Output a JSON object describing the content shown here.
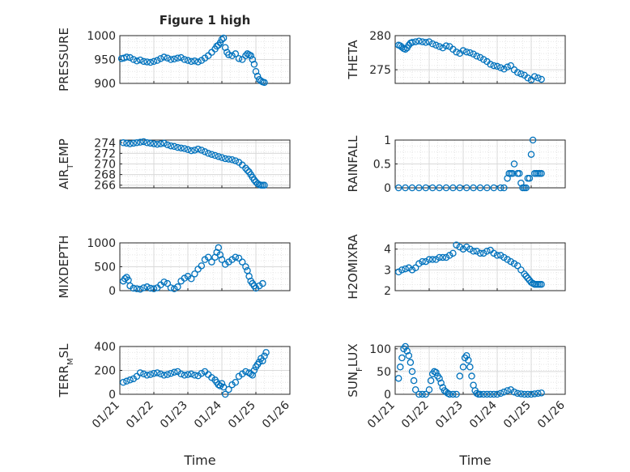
{
  "figure": {
    "title": "Figure 1 high",
    "marker_color": "#0072bd",
    "grid_color": "#d9d9d9",
    "axis_color": "#262626",
    "x_ticks": [
      "01/21",
      "01/22",
      "01/23",
      "01/24",
      "01/25",
      "01/26"
    ],
    "x_label": "Time"
  },
  "chart_data": [
    {
      "type": "scatter",
      "id": "pressure",
      "title": "Figure 1 high",
      "ylabel": "PRESSURE",
      "ylim": [
        900,
        1000
      ],
      "yticks": [
        "900",
        "950",
        "1000"
      ],
      "xlim": [
        0,
        5
      ],
      "grid": true,
      "x": [
        0.05,
        0.12,
        0.2,
        0.3,
        0.4,
        0.5,
        0.6,
        0.7,
        0.8,
        0.9,
        1.0,
        1.1,
        1.2,
        1.3,
        1.4,
        1.5,
        1.6,
        1.7,
        1.8,
        1.9,
        2.0,
        2.1,
        2.2,
        2.3,
        2.4,
        2.5,
        2.6,
        2.7,
        2.8,
        2.85,
        2.9,
        2.95,
        3.0,
        3.05,
        3.1,
        3.15,
        3.2,
        3.3,
        3.4,
        3.5,
        3.6,
        3.7,
        3.75,
        3.8,
        3.85,
        3.9,
        3.95,
        4.0,
        4.05,
        4.1,
        4.15,
        4.2,
        4.25
      ],
      "y": [
        952,
        953,
        955,
        954,
        950,
        947,
        949,
        946,
        945,
        944,
        946,
        948,
        952,
        955,
        953,
        950,
        951,
        953,
        954,
        950,
        948,
        946,
        947,
        945,
        948,
        953,
        958,
        965,
        972,
        978,
        980,
        985,
        992,
        995,
        975,
        965,
        960,
        958,
        962,
        952,
        950,
        958,
        962,
        960,
        958,
        950,
        940,
        925,
        915,
        908,
        905,
        903,
        902
      ]
    },
    {
      "type": "scatter",
      "id": "theta",
      "ylabel": "THETA",
      "ylim": [
        273,
        280
      ],
      "yticks": [
        "275",
        "280"
      ],
      "xlim": [
        0,
        5
      ],
      "grid": true,
      "x": [
        0.1,
        0.15,
        0.2,
        0.25,
        0.3,
        0.35,
        0.4,
        0.45,
        0.5,
        0.6,
        0.7,
        0.8,
        0.9,
        1.0,
        1.1,
        1.2,
        1.3,
        1.4,
        1.5,
        1.6,
        1.7,
        1.8,
        1.9,
        2.0,
        2.1,
        2.2,
        2.3,
        2.4,
        2.5,
        2.6,
        2.7,
        2.8,
        2.9,
        3.0,
        3.1,
        3.2,
        3.3,
        3.4,
        3.5,
        3.6,
        3.7,
        3.8,
        3.9,
        4.0,
        4.1,
        4.2,
        4.3
      ],
      "y": [
        278.6,
        278.5,
        278.3,
        278.1,
        278.0,
        278.2,
        278.6,
        278.9,
        279.0,
        279.1,
        279.2,
        279.1,
        279.0,
        279.1,
        278.8,
        278.6,
        278.4,
        278.2,
        278.5,
        278.4,
        278.0,
        277.6,
        277.4,
        277.8,
        277.6,
        277.5,
        277.3,
        277.0,
        276.8,
        276.5,
        276.2,
        275.8,
        275.6,
        275.5,
        275.3,
        275.1,
        275.4,
        275.6,
        275.0,
        274.6,
        274.4,
        274.2,
        273.8,
        273.5,
        274.0,
        273.8,
        273.6
      ]
    },
    {
      "type": "scatter",
      "id": "air-temp",
      "ylabel": "AIR_TEMP",
      "ylim": [
        265.5,
        274.5
      ],
      "yticks": [
        "266",
        "268",
        "270",
        "272",
        "274"
      ],
      "xlim": [
        0,
        5
      ],
      "grid": true,
      "x": [
        0.1,
        0.2,
        0.3,
        0.4,
        0.5,
        0.6,
        0.7,
        0.8,
        0.9,
        1.0,
        1.1,
        1.2,
        1.3,
        1.4,
        1.5,
        1.6,
        1.7,
        1.8,
        1.9,
        2.0,
        2.1,
        2.2,
        2.3,
        2.4,
        2.5,
        2.6,
        2.7,
        2.8,
        2.9,
        3.0,
        3.1,
        3.2,
        3.3,
        3.4,
        3.5,
        3.6,
        3.7,
        3.75,
        3.8,
        3.85,
        3.9,
        3.95,
        4.0,
        4.05,
        4.1,
        4.15,
        4.2,
        4.25
      ],
      "y": [
        274.0,
        273.9,
        273.8,
        273.9,
        274.0,
        274.1,
        274.2,
        274.0,
        273.9,
        273.8,
        273.7,
        273.8,
        273.9,
        273.6,
        273.4,
        273.3,
        273.1,
        273.0,
        272.9,
        272.7,
        272.5,
        272.6,
        272.8,
        272.6,
        272.3,
        272.0,
        271.8,
        271.6,
        271.4,
        271.2,
        271.0,
        270.9,
        270.8,
        270.6,
        270.3,
        269.8,
        269.2,
        268.8,
        268.5,
        268.0,
        267.5,
        267.0,
        266.6,
        266.3,
        266.1,
        266.0,
        266.0,
        266.0
      ]
    },
    {
      "type": "scatter",
      "id": "rainfall",
      "ylabel": "RAINFALL",
      "ylim": [
        0,
        1
      ],
      "yticks": [
        "0",
        "0.5",
        "1"
      ],
      "xlim": [
        0,
        5
      ],
      "grid": true,
      "x": [
        0.1,
        0.3,
        0.5,
        0.7,
        0.9,
        1.1,
        1.3,
        1.5,
        1.7,
        1.9,
        2.1,
        2.3,
        2.5,
        2.7,
        2.9,
        3.1,
        3.2,
        3.3,
        3.35,
        3.4,
        3.45,
        3.5,
        3.6,
        3.65,
        3.7,
        3.75,
        3.8,
        3.85,
        3.9,
        3.95,
        4.0,
        4.05,
        4.1,
        4.15,
        4.2,
        4.25,
        4.3
      ],
      "y": [
        0,
        0,
        0,
        0,
        0,
        0,
        0,
        0,
        0,
        0,
        0,
        0,
        0,
        0,
        0,
        0,
        0,
        0.2,
        0.3,
        0.3,
        0.3,
        0.5,
        0.3,
        0.3,
        0.1,
        0,
        0,
        0,
        0.2,
        0.2,
        0.7,
        1.0,
        0.3,
        0.3,
        0.3,
        0.3,
        0.3
      ]
    },
    {
      "type": "scatter",
      "id": "mixdepth",
      "ylabel": "MIXDEPTH",
      "ylim": [
        0,
        1000
      ],
      "yticks": [
        "0",
        "500",
        "1000"
      ],
      "xlim": [
        0,
        5
      ],
      "grid": true,
      "x": [
        0.1,
        0.15,
        0.2,
        0.25,
        0.3,
        0.4,
        0.5,
        0.6,
        0.7,
        0.8,
        0.9,
        1.0,
        1.1,
        1.2,
        1.3,
        1.4,
        1.5,
        1.6,
        1.7,
        1.8,
        1.9,
        2.0,
        2.1,
        2.2,
        2.3,
        2.4,
        2.5,
        2.6,
        2.7,
        2.8,
        2.85,
        2.9,
        2.95,
        3.0,
        3.1,
        3.2,
        3.3,
        3.4,
        3.5,
        3.6,
        3.7,
        3.75,
        3.8,
        3.85,
        3.9,
        3.95,
        4.0,
        4.1,
        4.2
      ],
      "y": [
        200,
        250,
        280,
        220,
        100,
        50,
        40,
        30,
        60,
        80,
        50,
        40,
        60,
        120,
        180,
        150,
        60,
        40,
        80,
        200,
        260,
        300,
        250,
        350,
        450,
        520,
        650,
        700,
        600,
        700,
        800,
        900,
        750,
        650,
        550,
        600,
        650,
        700,
        680,
        600,
        500,
        420,
        300,
        200,
        150,
        100,
        50,
        100,
        150
      ]
    },
    {
      "type": "scatter",
      "id": "h2omixra",
      "ylabel": "H2OMIXRA",
      "ylim": [
        2,
        4.3
      ],
      "yticks": [
        "2",
        "3",
        "4"
      ],
      "xlim": [
        0,
        5
      ],
      "grid": true,
      "x": [
        0.1,
        0.2,
        0.3,
        0.4,
        0.5,
        0.6,
        0.7,
        0.8,
        0.9,
        1.0,
        1.1,
        1.2,
        1.3,
        1.4,
        1.5,
        1.6,
        1.7,
        1.8,
        1.9,
        2.0,
        2.1,
        2.2,
        2.3,
        2.4,
        2.5,
        2.6,
        2.7,
        2.8,
        2.9,
        3.0,
        3.1,
        3.2,
        3.3,
        3.4,
        3.5,
        3.6,
        3.7,
        3.8,
        3.85,
        3.9,
        3.95,
        4.0,
        4.05,
        4.1,
        4.15,
        4.2,
        4.25,
        4.3
      ],
      "y": [
        2.9,
        3.0,
        3.05,
        3.1,
        3.0,
        3.1,
        3.3,
        3.4,
        3.4,
        3.5,
        3.5,
        3.5,
        3.6,
        3.6,
        3.6,
        3.7,
        3.8,
        4.2,
        4.1,
        4.0,
        4.1,
        4.0,
        3.9,
        3.9,
        3.8,
        3.8,
        3.9,
        3.95,
        3.8,
        3.7,
        3.7,
        3.6,
        3.5,
        3.4,
        3.3,
        3.2,
        3.0,
        2.8,
        2.7,
        2.6,
        2.5,
        2.4,
        2.35,
        2.3,
        2.3,
        2.3,
        2.3,
        2.3
      ]
    },
    {
      "type": "scatter",
      "id": "terr-msl",
      "ylabel": "TERR_MSL",
      "ylim": [
        0,
        400
      ],
      "yticks": [
        "0",
        "200",
        "400"
      ],
      "xlim": [
        0,
        5
      ],
      "grid": true,
      "x": [
        0.1,
        0.2,
        0.3,
        0.4,
        0.5,
        0.6,
        0.7,
        0.8,
        0.9,
        1.0,
        1.1,
        1.2,
        1.3,
        1.4,
        1.5,
        1.6,
        1.7,
        1.8,
        1.9,
        2.0,
        2.1,
        2.2,
        2.3,
        2.4,
        2.5,
        2.6,
        2.7,
        2.8,
        2.85,
        2.9,
        2.95,
        3.0,
        3.05,
        3.1,
        3.2,
        3.3,
        3.4,
        3.5,
        3.6,
        3.7,
        3.8,
        3.85,
        3.9,
        3.95,
        4.0,
        4.05,
        4.1,
        4.15,
        4.2,
        4.25,
        4.3
      ],
      "y": [
        100,
        110,
        120,
        130,
        150,
        180,
        170,
        160,
        165,
        175,
        180,
        170,
        160,
        165,
        175,
        185,
        190,
        170,
        160,
        165,
        170,
        160,
        155,
        175,
        190,
        165,
        140,
        120,
        100,
        80,
        70,
        90,
        60,
        0,
        40,
        80,
        100,
        150,
        170,
        190,
        180,
        170,
        160,
        200,
        230,
        250,
        270,
        300,
        280,
        320,
        350
      ]
    },
    {
      "type": "scatter",
      "id": "sun-flux",
      "ylabel": "SUN_FLUX",
      "ylim": [
        0,
        105
      ],
      "yticks": [
        "0",
        "50",
        "100"
      ],
      "xlim": [
        0,
        5
      ],
      "grid": true,
      "x": [
        0.1,
        0.15,
        0.2,
        0.25,
        0.3,
        0.35,
        0.4,
        0.45,
        0.5,
        0.55,
        0.6,
        0.7,
        0.8,
        0.9,
        1.0,
        1.05,
        1.1,
        1.15,
        1.2,
        1.25,
        1.3,
        1.35,
        1.4,
        1.45,
        1.5,
        1.55,
        1.6,
        1.7,
        1.8,
        1.9,
        2.0,
        2.05,
        2.1,
        2.15,
        2.2,
        2.25,
        2.3,
        2.35,
        2.4,
        2.45,
        2.5,
        2.6,
        2.7,
        2.8,
        2.9,
        3.0,
        3.1,
        3.2,
        3.3,
        3.4,
        3.5,
        3.6,
        3.7,
        3.8,
        3.9,
        4.0,
        4.1,
        4.2,
        4.3
      ],
      "y": [
        35,
        60,
        80,
        100,
        105,
        95,
        85,
        70,
        50,
        30,
        10,
        0,
        0,
        0,
        10,
        30,
        45,
        50,
        48,
        40,
        35,
        25,
        15,
        8,
        5,
        2,
        0,
        0,
        0,
        40,
        60,
        80,
        85,
        75,
        60,
        40,
        20,
        8,
        2,
        0,
        0,
        0,
        0,
        0,
        0,
        0,
        2,
        5,
        8,
        10,
        5,
        2,
        1,
        0,
        0,
        0,
        1,
        2,
        3
      ]
    }
  ]
}
